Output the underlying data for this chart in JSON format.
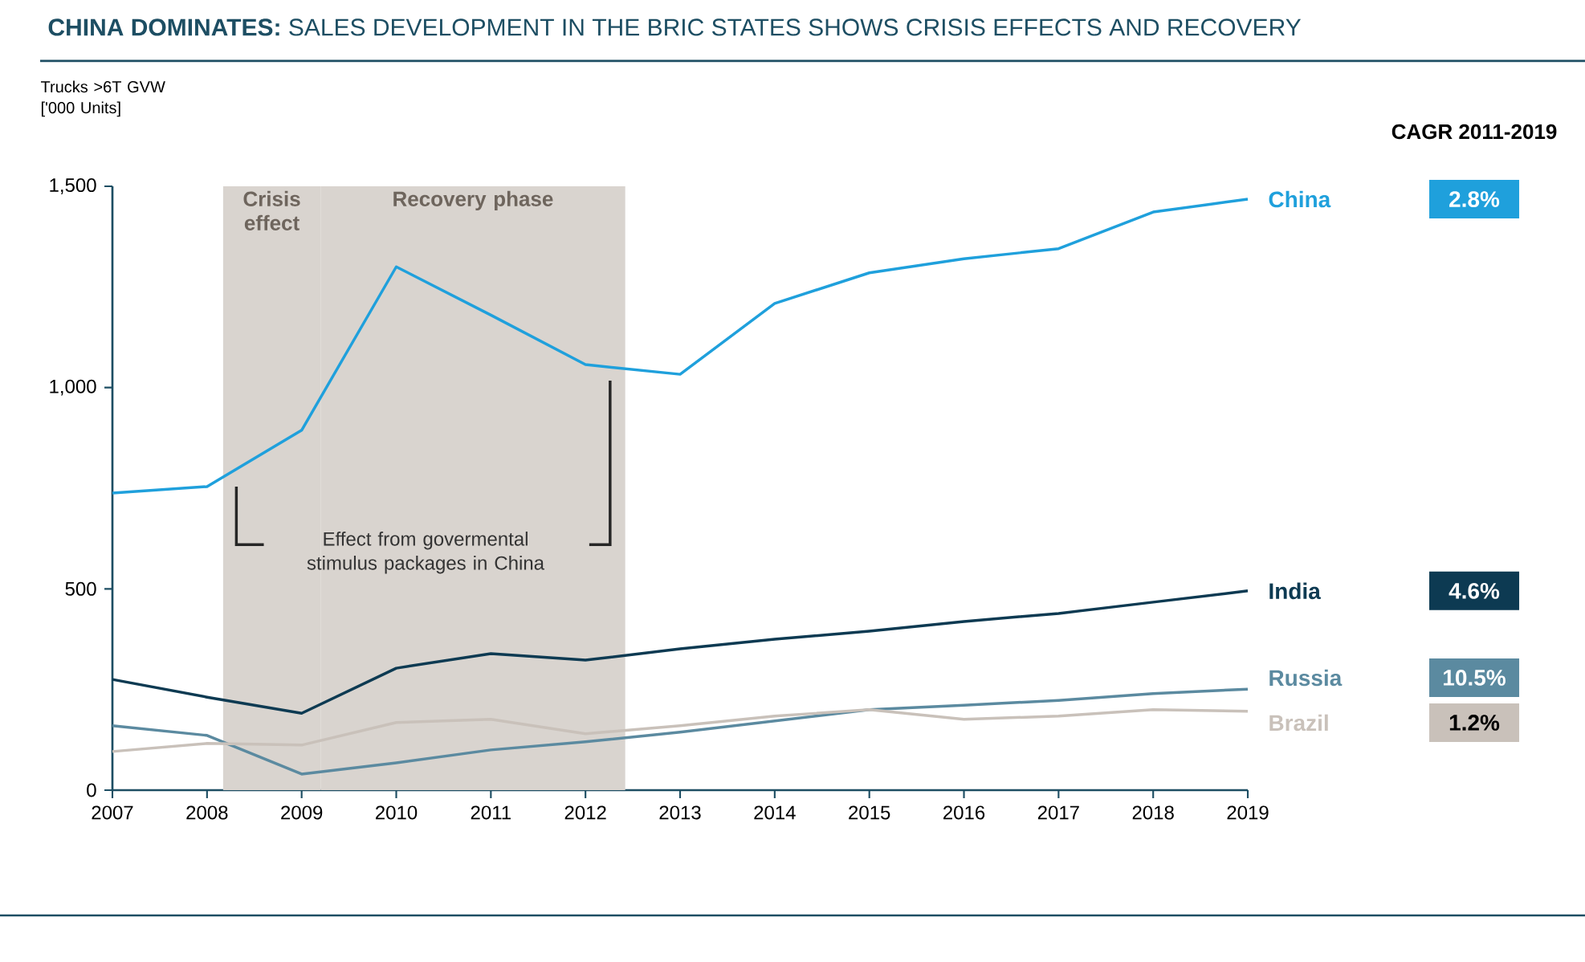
{
  "chart_data": {
    "type": "line",
    "title": "**CHINA DOMINATES:** SALES DEVELOPMENT IN THE BRIC STATES SHOWS CRISIS EFFECTS AND RECOVERY",
    "ylabel": "Trucks >6T GVW ['000 Units]",
    "x": [
      2007,
      2008,
      2009,
      2010,
      2011,
      2012,
      2013,
      2014,
      2015,
      2016,
      2017,
      2018,
      2019
    ],
    "series": [
      {
        "name": "China",
        "color": "#1fa0dc",
        "values": [
          738,
          754,
          894,
          1300,
          1180,
          1057,
          1033,
          1209,
          1285,
          1320,
          1345,
          1436,
          1468
        ]
      },
      {
        "name": "India",
        "color": "#0d3a52",
        "values": [
          275,
          231,
          191,
          303,
          339,
          323,
          351,
          375,
          395,
          419,
          439,
          467,
          495
        ]
      },
      {
        "name": "Russia",
        "color": "#5b8aa0",
        "values": [
          160,
          136,
          40,
          68,
          100,
          120,
          144,
          172,
          200,
          211,
          223,
          240,
          251
        ]
      },
      {
        "name": "Brazil",
        "color": "#c9c1ba",
        "values": [
          96,
          116,
          112,
          168,
          176,
          140,
          160,
          184,
          200,
          176,
          184,
          200,
          196
        ]
      }
    ],
    "xlim": [
      2007,
      2019
    ],
    "xticks": [
      2007,
      2008,
      2009,
      2010,
      2011,
      2012,
      2013,
      2014,
      2015,
      2016,
      2017,
      2018,
      2019
    ],
    "ylim": [
      0,
      1500
    ],
    "yticks": [
      0,
      500,
      {
        "value": 1000,
        "label": "1,000"
      },
      {
        "value": 1500,
        "label": "1,500"
      }
    ],
    "bands": [
      {
        "axis": "x",
        "from": 2008.17,
        "to": 2009.2,
        "label": "Crisis effect",
        "color": "#d9d4cf"
      },
      {
        "axis": "x",
        "from": 2009.2,
        "to": 2012.42,
        "label": "Recovery phase",
        "color": "#d9d4cf"
      }
    ],
    "annotations": [
      "Effect from govermental stimulus packages in China",
      "CAGR 2011-2019",
      "2.8%",
      "4.6%",
      "10.5%",
      "1.2%"
    ],
    "legend": false
  }
}
